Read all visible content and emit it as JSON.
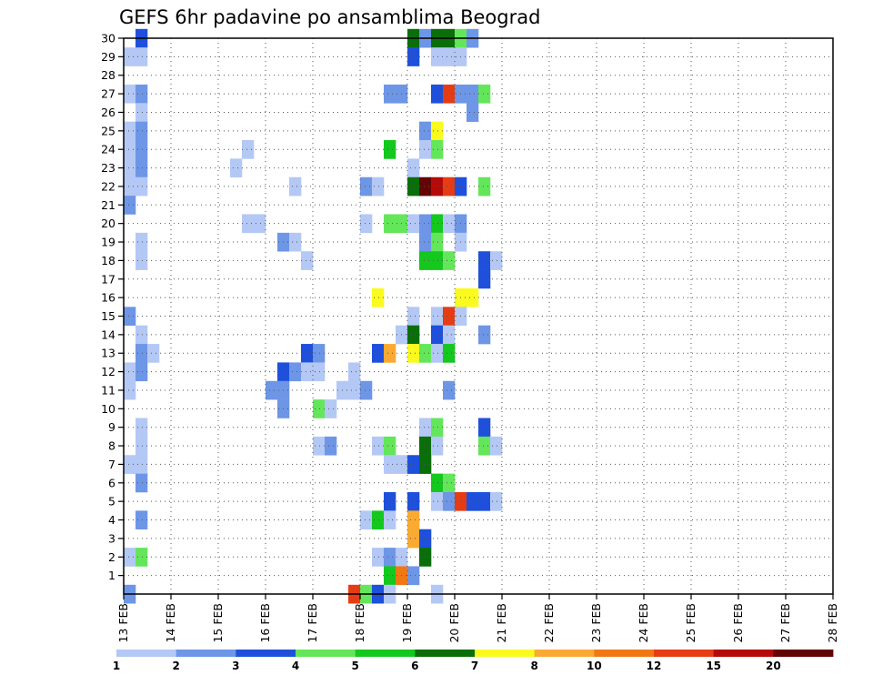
{
  "chart_data": {
    "type": "heatmap",
    "title": "GEFS 6hr padavine po ansamblima Beograd",
    "x_tick_labels": [
      "13 FEB",
      "14 FEB",
      "15 FEB",
      "16 FEB",
      "17 FEB",
      "18 FEB",
      "19 FEB",
      "20 FEB",
      "21 FEB",
      "22 FEB",
      "23 FEB",
      "24 FEB",
      "25 FEB",
      "26 FEB",
      "27 FEB",
      "28 FEB"
    ],
    "y_tick_labels": [
      "1",
      "2",
      "3",
      "4",
      "5",
      "6",
      "7",
      "8",
      "9",
      "10",
      "11",
      "12",
      "13",
      "14",
      "15",
      "16",
      "17",
      "18",
      "19",
      "20",
      "21",
      "22",
      "23",
      "24",
      "25",
      "26",
      "27",
      "28",
      "29",
      "30"
    ],
    "xlim_days": [
      0,
      15
    ],
    "ylim_members": [
      0,
      30
    ],
    "time_step_hours": 6,
    "grid": "dotted",
    "colorbar": {
      "labels": [
        "1",
        "2",
        "3",
        "4",
        "5",
        "6",
        "7",
        "8",
        "10",
        "12",
        "15",
        "20"
      ],
      "colors": [
        "#b4c8f5",
        "#6e96e6",
        "#1e50dc",
        "#64e65a",
        "#14c81e",
        "#0a6e0a",
        "#fafa1e",
        "#faaa32",
        "#f07814",
        "#e63c14",
        "#b40a0a",
        "#640505"
      ]
    },
    "cells": [
      [
        30,
        1,
        2
      ],
      [
        30,
        24,
        5
      ],
      [
        30,
        25,
        1
      ],
      [
        30,
        26,
        5
      ],
      [
        30,
        27,
        5
      ],
      [
        30,
        28,
        3
      ],
      [
        30,
        29,
        1
      ],
      [
        29,
        0,
        0
      ],
      [
        29,
        1,
        0
      ],
      [
        29,
        24,
        2
      ],
      [
        29,
        26,
        0
      ],
      [
        29,
        27,
        0
      ],
      [
        29,
        28,
        0
      ],
      [
        27,
        0,
        0
      ],
      [
        27,
        1,
        1
      ],
      [
        27,
        22,
        1
      ],
      [
        27,
        23,
        1
      ],
      [
        27,
        26,
        2
      ],
      [
        27,
        27,
        9
      ],
      [
        27,
        28,
        1
      ],
      [
        27,
        29,
        1
      ],
      [
        27,
        30,
        3
      ],
      [
        26,
        1,
        0
      ],
      [
        26,
        29,
        1
      ],
      [
        25,
        0,
        0
      ],
      [
        25,
        1,
        1
      ],
      [
        25,
        25,
        1
      ],
      [
        25,
        26,
        6
      ],
      [
        24,
        0,
        0
      ],
      [
        24,
        1,
        1
      ],
      [
        24,
        10,
        0
      ],
      [
        24,
        22,
        4
      ],
      [
        24,
        25,
        0
      ],
      [
        24,
        26,
        3
      ],
      [
        23,
        0,
        0
      ],
      [
        23,
        1,
        1
      ],
      [
        23,
        9,
        0
      ],
      [
        23,
        24,
        0
      ],
      [
        22,
        0,
        0
      ],
      [
        22,
        1,
        0
      ],
      [
        22,
        14,
        0
      ],
      [
        22,
        20,
        1
      ],
      [
        22,
        21,
        0
      ],
      [
        22,
        24,
        5
      ],
      [
        22,
        25,
        11
      ],
      [
        22,
        26,
        10
      ],
      [
        22,
        27,
        9
      ],
      [
        22,
        28,
        2
      ],
      [
        22,
        30,
        3
      ],
      [
        21,
        0,
        1
      ],
      [
        20,
        10,
        0
      ],
      [
        20,
        11,
        0
      ],
      [
        20,
        20,
        0
      ],
      [
        20,
        22,
        3
      ],
      [
        20,
        23,
        3
      ],
      [
        20,
        24,
        0
      ],
      [
        20,
        25,
        1
      ],
      [
        20,
        26,
        4
      ],
      [
        20,
        27,
        0
      ],
      [
        20,
        28,
        1
      ],
      [
        19,
        1,
        0
      ],
      [
        19,
        13,
        1
      ],
      [
        19,
        14,
        0
      ],
      [
        19,
        25,
        1
      ],
      [
        19,
        26,
        3
      ],
      [
        19,
        28,
        0
      ],
      [
        18,
        1,
        0
      ],
      [
        18,
        15,
        0
      ],
      [
        18,
        25,
        4
      ],
      [
        18,
        26,
        4
      ],
      [
        18,
        27,
        3
      ],
      [
        18,
        30,
        2
      ],
      [
        18,
        31,
        0
      ],
      [
        17,
        30,
        2
      ],
      [
        16,
        21,
        6
      ],
      [
        16,
        28,
        6
      ],
      [
        16,
        29,
        6
      ],
      [
        15,
        0,
        1
      ],
      [
        15,
        24,
        0
      ],
      [
        15,
        26,
        0
      ],
      [
        15,
        27,
        9
      ],
      [
        15,
        28,
        0
      ],
      [
        14,
        1,
        0
      ],
      [
        14,
        23,
        0
      ],
      [
        14,
        24,
        5
      ],
      [
        14,
        26,
        2
      ],
      [
        14,
        27,
        0
      ],
      [
        14,
        30,
        1
      ],
      [
        13,
        1,
        1
      ],
      [
        13,
        2,
        0
      ],
      [
        13,
        15,
        2
      ],
      [
        13,
        16,
        1
      ],
      [
        13,
        21,
        2
      ],
      [
        13,
        22,
        7
      ],
      [
        13,
        24,
        6
      ],
      [
        13,
        25,
        3
      ],
      [
        13,
        26,
        0
      ],
      [
        13,
        27,
        4
      ],
      [
        12,
        0,
        0
      ],
      [
        12,
        1,
        1
      ],
      [
        12,
        13,
        2
      ],
      [
        12,
        14,
        1
      ],
      [
        12,
        15,
        0
      ],
      [
        12,
        16,
        0
      ],
      [
        12,
        19,
        0
      ],
      [
        11,
        0,
        0
      ],
      [
        11,
        12,
        1
      ],
      [
        11,
        13,
        1
      ],
      [
        11,
        18,
        0
      ],
      [
        11,
        19,
        0
      ],
      [
        11,
        20,
        1
      ],
      [
        11,
        27,
        1
      ],
      [
        10,
        13,
        1
      ],
      [
        10,
        16,
        3
      ],
      [
        10,
        17,
        0
      ],
      [
        9,
        1,
        0
      ],
      [
        9,
        25,
        0
      ],
      [
        9,
        26,
        3
      ],
      [
        9,
        30,
        2
      ],
      [
        8,
        1,
        0
      ],
      [
        8,
        16,
        0
      ],
      [
        8,
        17,
        1
      ],
      [
        8,
        21,
        0
      ],
      [
        8,
        22,
        3
      ],
      [
        8,
        25,
        5
      ],
      [
        8,
        26,
        0
      ],
      [
        8,
        30,
        3
      ],
      [
        8,
        31,
        0
      ],
      [
        7,
        0,
        0
      ],
      [
        7,
        1,
        0
      ],
      [
        7,
        22,
        0
      ],
      [
        7,
        23,
        0
      ],
      [
        7,
        24,
        2
      ],
      [
        7,
        25,
        5
      ],
      [
        6,
        1,
        1
      ],
      [
        6,
        26,
        4
      ],
      [
        6,
        27,
        3
      ],
      [
        5,
        22,
        2
      ],
      [
        5,
        24,
        2
      ],
      [
        5,
        26,
        0
      ],
      [
        5,
        27,
        1
      ],
      [
        5,
        28,
        9
      ],
      [
        5,
        29,
        2
      ],
      [
        5,
        30,
        2
      ],
      [
        5,
        31,
        0
      ],
      [
        4,
        1,
        1
      ],
      [
        4,
        20,
        0
      ],
      [
        4,
        21,
        4
      ],
      [
        4,
        22,
        0
      ],
      [
        4,
        24,
        7
      ],
      [
        3,
        24,
        7
      ],
      [
        3,
        25,
        2
      ],
      [
        2,
        0,
        0
      ],
      [
        2,
        1,
        3
      ],
      [
        2,
        21,
        0
      ],
      [
        2,
        22,
        1
      ],
      [
        2,
        23,
        0
      ],
      [
        2,
        25,
        5
      ],
      [
        1,
        22,
        4
      ],
      [
        1,
        23,
        8
      ],
      [
        1,
        24,
        1
      ],
      [
        0,
        0,
        1
      ],
      [
        0,
        19,
        9
      ],
      [
        0,
        20,
        3
      ],
      [
        0,
        21,
        2
      ],
      [
        0,
        22,
        0
      ],
      [
        0,
        26,
        0
      ]
    ]
  }
}
